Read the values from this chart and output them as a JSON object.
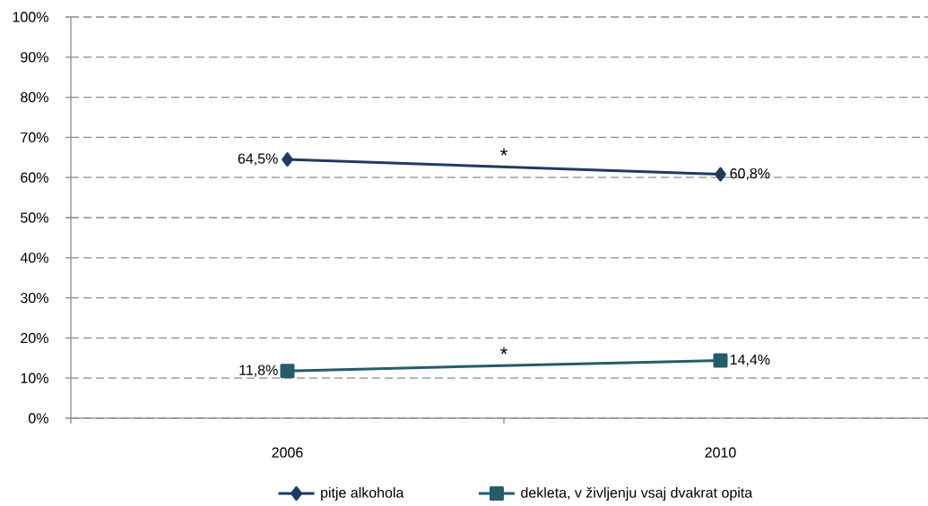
{
  "chart_data": {
    "type": "line",
    "categories": [
      "2006",
      "2010"
    ],
    "series": [
      {
        "name": "pitje alkohola",
        "color": "#1f3b64",
        "values": [
          64.5,
          60.8
        ],
        "marker": "diamond",
        "value_labels": [
          "64,5%",
          "60,8%"
        ]
      },
      {
        "name": "dekleta, v življenju vsaj dvakrat opita",
        "color": "#245c6b",
        "values": [
          11.8,
          14.4
        ],
        "marker": "square",
        "value_labels": [
          "11,8%",
          "14,4%"
        ]
      }
    ],
    "ylim": [
      0,
      100
    ],
    "yticks": [
      {
        "value": 0,
        "label": "0%"
      },
      {
        "value": 10,
        "label": "10%"
      },
      {
        "value": 20,
        "label": "20%"
      },
      {
        "value": 30,
        "label": "30%"
      },
      {
        "value": 40,
        "label": "40%"
      },
      {
        "value": 50,
        "label": "50%"
      },
      {
        "value": 60,
        "label": "60%"
      },
      {
        "value": 70,
        "label": "70%"
      },
      {
        "value": 80,
        "label": "80%"
      },
      {
        "value": 90,
        "label": "90%"
      },
      {
        "value": 100,
        "label": "100%"
      }
    ],
    "grid": "y",
    "legend": "bottom",
    "line_style": "solid",
    "annotations": [
      "*",
      "*"
    ]
  }
}
